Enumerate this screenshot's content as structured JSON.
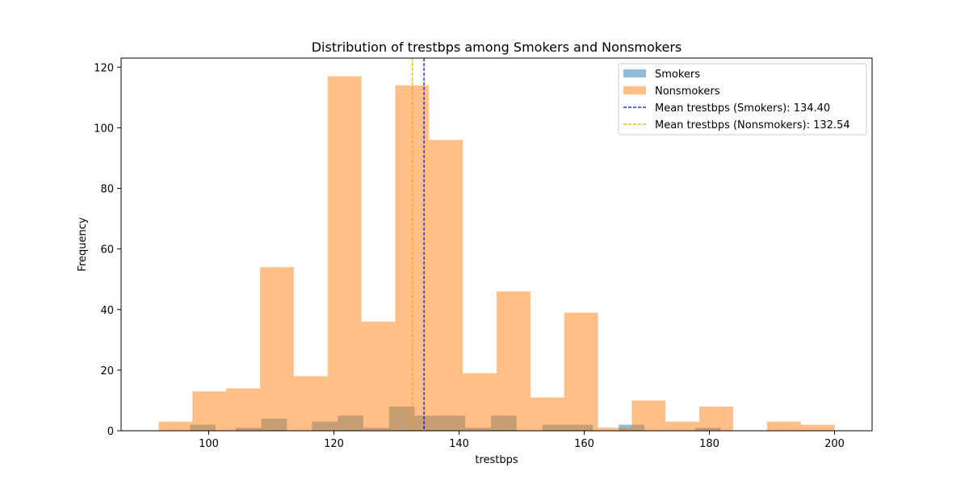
{
  "chart_data": {
    "type": "bar",
    "title": "Distribution of trestbps among Smokers and Nonsmokers",
    "xlabel": "trestbps",
    "ylabel": "Frequency",
    "xlim": [
      86.0,
      206.0
    ],
    "ylim": [
      0,
      123
    ],
    "xticks": [
      100,
      120,
      140,
      160,
      180,
      200
    ],
    "yticks": [
      0,
      20,
      40,
      60,
      80,
      100,
      120
    ],
    "legend_position": "top-right",
    "series": [
      {
        "name": "Smokers",
        "color": "#1f77b4",
        "opacity": 0.5,
        "bin_edges": [
          97.0,
          101.1,
          104.3,
          108.4,
          112.5,
          116.5,
          120.6,
          124.7,
          128.8,
          132.9,
          136.9,
          141.0,
          145.1,
          149.2,
          153.3,
          157.3,
          161.4,
          165.5,
          169.6,
          173.7,
          177.7,
          181.8
        ],
        "counts": [
          2,
          0,
          1,
          4,
          0,
          3,
          5,
          1,
          8,
          5,
          5,
          1,
          5,
          0,
          2,
          2,
          0,
          2,
          0,
          0,
          1
        ]
      },
      {
        "name": "Nonsmokers",
        "color": "#ff7f0e",
        "opacity": 0.5,
        "bin_edges": [
          92.0,
          97.4,
          102.8,
          108.2,
          113.6,
          119.0,
          124.4,
          129.8,
          135.2,
          140.6,
          146.0,
          151.4,
          156.8,
          162.2,
          167.6,
          173.0,
          178.4,
          183.8,
          189.2,
          194.6,
          200.0
        ],
        "counts": [
          3,
          13,
          14,
          54,
          18,
          117,
          36,
          114,
          96,
          19,
          46,
          11,
          39,
          1,
          10,
          3,
          8,
          0,
          3,
          2
        ]
      }
    ],
    "mean_lines": [
      {
        "label": "Mean trestbps (Smokers): 134.40",
        "value": 134.4,
        "color": "#0000ff"
      },
      {
        "label": "Mean trestbps (Nonsmokers): 132.54",
        "value": 132.54,
        "color": "#ffa500"
      }
    ]
  }
}
